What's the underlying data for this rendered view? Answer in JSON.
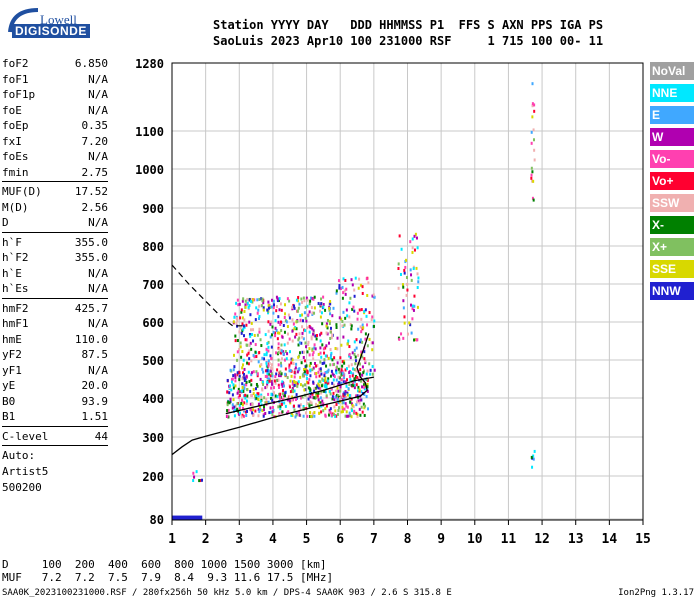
{
  "logo": {
    "line1": "Lowell",
    "line2": "DIGISONDE"
  },
  "header": {
    "row1": "Station YYYY DAY   DDD HHMMSS P1  FFS S AXN PPS IGA PS",
    "row2": "SaoLuis 2023 Apr10 100 231000 RSF     1 715 100 00- 11"
  },
  "params": [
    {
      "name": "foF2",
      "value": "6.850"
    },
    {
      "name": "foF1",
      "value": "N/A"
    },
    {
      "name": "foF1p",
      "value": "N/A"
    },
    {
      "name": "foE",
      "value": "N/A"
    },
    {
      "name": "foEp",
      "value": "0.35"
    },
    {
      "name": "fxI",
      "value": "7.20"
    },
    {
      "name": "foEs",
      "value": "N/A"
    },
    {
      "name": "fmin",
      "value": "2.75",
      "sep": true
    },
    {
      "name": "MUF(D)",
      "value": "17.52"
    },
    {
      "name": "M(D)",
      "value": "2.56"
    },
    {
      "name": "D",
      "value": "N/A",
      "sep": true
    },
    {
      "name": "h`F",
      "value": "355.0"
    },
    {
      "name": "h`F2",
      "value": "355.0"
    },
    {
      "name": "h`E",
      "value": "N/A"
    },
    {
      "name": "h`Es",
      "value": "N/A",
      "sep": true
    },
    {
      "name": "hmF2",
      "value": "425.7"
    },
    {
      "name": "hmF1",
      "value": "N/A"
    },
    {
      "name": "hmE",
      "value": "110.0"
    },
    {
      "name": "yF2",
      "value": "87.5"
    },
    {
      "name": "yF1",
      "value": "N/A"
    },
    {
      "name": "yE",
      "value": "20.0"
    },
    {
      "name": "B0",
      "value": "93.9"
    },
    {
      "name": "B1",
      "value": "1.51",
      "sep": true
    },
    {
      "name": "C-level",
      "value": "44",
      "sep": true
    }
  ],
  "autoscaling": [
    "Auto:",
    "Artist5",
    "500200"
  ],
  "legend": [
    {
      "label": "NoVal",
      "color": "#a0a0a0"
    },
    {
      "label": "NNE",
      "color": "#00e8ff"
    },
    {
      "label": "E",
      "color": "#40a8ff"
    },
    {
      "label": "W",
      "color": "#b000b0"
    },
    {
      "label": "Vo-",
      "color": "#ff40b0"
    },
    {
      "label": "Vo+",
      "color": "#ff0030"
    },
    {
      "label": "SSW",
      "color": "#f0b0b0"
    },
    {
      "label": "X-",
      "color": "#008000"
    },
    {
      "label": "X+",
      "color": "#80c060"
    },
    {
      "label": "SSE",
      "color": "#d8d800"
    },
    {
      "label": "NNW",
      "color": "#2020d0"
    }
  ],
  "muf_table": {
    "row1": "D     100  200  400  600  800 1000 1500 3000 [km]",
    "row2": "MUF   7.2  7.2  7.5  7.9  8.4  9.3 11.6 17.5 [MHz]"
  },
  "footer": {
    "left": "SAA0K_2023100231000.RSF / 280fx256h 50 kHz 5.0 km / DPS-4 SAA0K 903 / 2.6 S 315.8 E",
    "right": "Ion2Png 1.3.17"
  },
  "chart_data": {
    "type": "scatter",
    "xlim": [
      1,
      15
    ],
    "ylim": [
      80,
      1280
    ],
    "xticks": [
      "1",
      "2",
      "3",
      "4",
      "5",
      "6",
      "7",
      "8",
      "9",
      "10",
      "11",
      "12",
      "13",
      "14",
      "15"
    ],
    "yticks": [
      {
        "v": 80,
        "label": "80"
      },
      {
        "v": 200,
        "label": "200"
      },
      {
        "v": 300,
        "label": "300"
      },
      {
        "v": 400,
        "label": "400"
      },
      {
        "v": 500,
        "label": "500"
      },
      {
        "v": 600,
        "label": "600"
      },
      {
        "v": 700,
        "label": "700"
      },
      {
        "v": 800,
        "label": "800"
      },
      {
        "v": 900,
        "label": "900"
      },
      {
        "v": 1000,
        "label": "1000"
      },
      {
        "v": 1100,
        "label": "1100"
      },
      {
        "v": 1280,
        "label": "1280"
      }
    ],
    "grid": true,
    "trace_profile": [
      [
        1.0,
        255
      ],
      [
        1.3,
        275
      ],
      [
        1.6,
        292
      ],
      [
        2.0,
        302
      ],
      [
        3.0,
        325
      ],
      [
        4.0,
        350
      ],
      [
        5.0,
        372
      ],
      [
        6.0,
        392
      ],
      [
        6.6,
        405
      ],
      [
        6.8,
        420
      ],
      [
        6.75,
        440
      ],
      [
        6.6,
        455
      ],
      [
        6.5,
        480
      ],
      [
        6.7,
        530
      ],
      [
        6.85,
        570
      ]
    ],
    "trace_xmode": [
      [
        2.6,
        360
      ],
      [
        3.5,
        378
      ],
      [
        4.5,
        398
      ],
      [
        5.5,
        420
      ],
      [
        6.4,
        445
      ],
      [
        7.0,
        455
      ]
    ],
    "trace_dashed": [
      [
        1.0,
        750
      ],
      [
        1.5,
        700
      ],
      [
        2.0,
        655
      ],
      [
        2.5,
        610
      ],
      [
        2.8,
        590
      ],
      [
        3.2,
        590
      ]
    ],
    "echo_clusters": [
      {
        "x": [
          2.6,
          6.8
        ],
        "y": [
          355,
          480
        ],
        "n": 700
      },
      {
        "x": [
          2.8,
          5.8
        ],
        "y": [
          470,
          670
        ],
        "n": 450
      },
      {
        "x": [
          5.8,
          7.0
        ],
        "y": [
          450,
          720
        ],
        "n": 150
      },
      {
        "x": [
          7.7,
          8.3
        ],
        "y": [
          550,
          850
        ],
        "n": 60
      },
      {
        "x": [
          1.5,
          1.9
        ],
        "y": [
          190,
          240
        ],
        "n": 8
      },
      {
        "x": [
          11.65,
          11.75
        ],
        "y": [
          900,
          1270
        ],
        "n": 20
      },
      {
        "x": [
          11.65,
          11.75
        ],
        "y": [
          220,
          270
        ],
        "n": 6
      }
    ],
    "low_echo": {
      "x": [
        1.0,
        1.9
      ],
      "y": [
        80,
        84
      ]
    }
  }
}
